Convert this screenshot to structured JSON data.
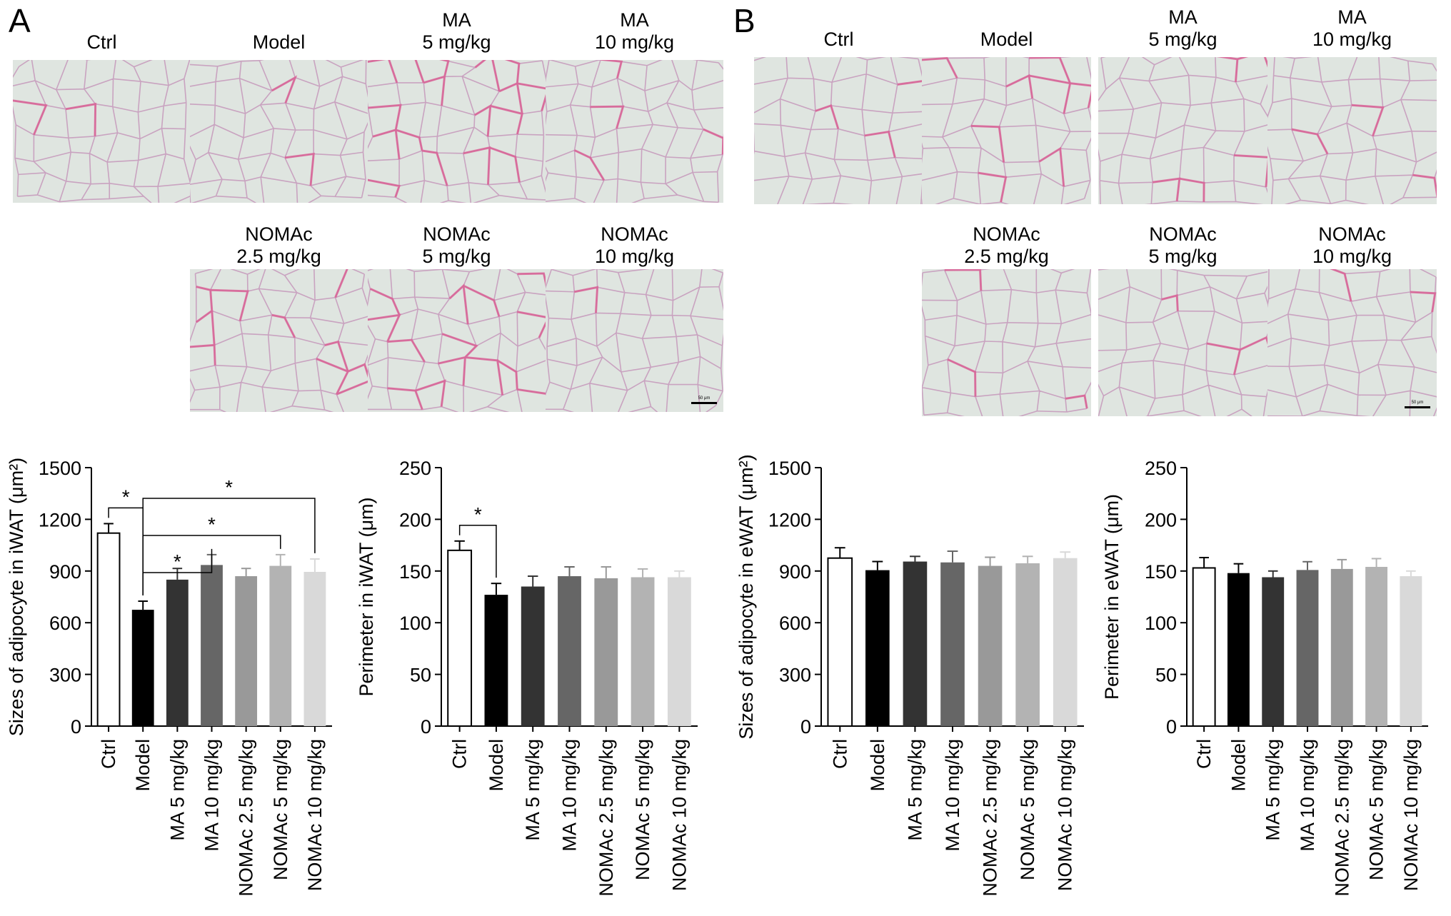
{
  "panels": [
    {
      "letter": "A",
      "micrograph_labels_row1": [
        [
          "Ctrl",
          ""
        ],
        [
          "Model",
          ""
        ],
        [
          "MA",
          "5 mg/kg"
        ],
        [
          "MA",
          "10 mg/kg"
        ]
      ],
      "micrograph_labels_row2": [
        [
          "NOMAc",
          "2.5 mg/kg"
        ],
        [
          "NOMAc",
          "5 mg/kg"
        ],
        [
          "NOMAc",
          "10 mg/kg"
        ]
      ],
      "scale_bar_text": "50 μm"
    },
    {
      "letter": "B",
      "micrograph_labels_row1": [
        [
          "Ctrl",
          ""
        ],
        [
          "Model",
          ""
        ],
        [
          "MA",
          "5 mg/kg"
        ],
        [
          "MA",
          "10 mg/kg"
        ]
      ],
      "micrograph_labels_row2": [
        [
          "NOMAc",
          "2.5 mg/kg"
        ],
        [
          "NOMAc",
          "5 mg/kg"
        ],
        [
          "NOMAc",
          "10 mg/kg"
        ]
      ],
      "scale_bar_text": "50 μm"
    }
  ],
  "chart_data": [
    {
      "type": "bar",
      "panel": "A",
      "ylabel": "Sizes of adipocyte in iWAT (μm²)",
      "ylim": [
        0,
        1500
      ],
      "yticks": [
        0,
        300,
        600,
        900,
        1200,
        1500
      ],
      "categories": [
        "Ctrl",
        "Model",
        "MA 5 mg/kg",
        "MA 10 mg/kg",
        "NOMAc 2.5 mg/kg",
        "NOMAc 5 mg/kg",
        "NOMAc 10 mg/kg"
      ],
      "values": [
        1120,
        675,
        850,
        935,
        870,
        930,
        895
      ],
      "errors": [
        55,
        50,
        65,
        60,
        45,
        65,
        75
      ],
      "bar_colors": [
        "#ffffff",
        "#000000",
        "#333333",
        "#666666",
        "#999999",
        "#b3b3b3",
        "#d9d9d9"
      ],
      "significance": [
        {
          "from": 0,
          "to": 1,
          "label": "*"
        },
        {
          "from": 1,
          "to": 3,
          "label": "*"
        },
        {
          "from": 1,
          "to": 5,
          "label": "*"
        },
        {
          "from": 1,
          "to": 6,
          "label": "*"
        }
      ]
    },
    {
      "type": "bar",
      "panel": "A",
      "ylabel": "Perimeter in iWAT (μm)",
      "ylim": [
        0,
        250
      ],
      "yticks": [
        0,
        50,
        100,
        150,
        200,
        250
      ],
      "categories": [
        "Ctrl",
        "Model",
        "MA 5 mg/kg",
        "MA 10 mg/kg",
        "NOMAc 2.5 mg/kg",
        "NOMAc 5 mg/kg",
        "NOMAc 10 mg/kg"
      ],
      "values": [
        170,
        127,
        135,
        145,
        143,
        144,
        144
      ],
      "errors": [
        9,
        11,
        10,
        9,
        11,
        8,
        6
      ],
      "bar_colors": [
        "#ffffff",
        "#000000",
        "#333333",
        "#666666",
        "#999999",
        "#b3b3b3",
        "#d9d9d9"
      ],
      "significance": [
        {
          "from": 0,
          "to": 1,
          "label": "*"
        }
      ]
    },
    {
      "type": "bar",
      "panel": "B",
      "ylabel": "Sizes of adipocyte in eWAT (μm²)",
      "ylim": [
        0,
        1500
      ],
      "yticks": [
        0,
        300,
        600,
        900,
        1200,
        1500
      ],
      "categories": [
        "Ctrl",
        "Model",
        "MA 5 mg/kg",
        "MA 10 mg/kg",
        "NOMAc 2.5 mg/kg",
        "NOMAc 5 mg/kg",
        "NOMAc 10 mg/kg"
      ],
      "values": [
        975,
        905,
        955,
        950,
        930,
        945,
        975
      ],
      "errors": [
        60,
        50,
        30,
        65,
        50,
        40,
        35
      ],
      "bar_colors": [
        "#ffffff",
        "#000000",
        "#333333",
        "#666666",
        "#999999",
        "#b3b3b3",
        "#d9d9d9"
      ],
      "significance": []
    },
    {
      "type": "bar",
      "panel": "B",
      "ylabel": "Perimeter in eWAT (μm)",
      "ylim": [
        0,
        250
      ],
      "yticks": [
        0,
        50,
        100,
        150,
        200,
        250
      ],
      "categories": [
        "Ctrl",
        "Model",
        "MA 5 mg/kg",
        "MA 10 mg/kg",
        "NOMAc 2.5 mg/kg",
        "NOMAc 5 mg/kg",
        "NOMAc 10 mg/kg"
      ],
      "values": [
        153,
        148,
        144,
        151,
        152,
        154,
        145
      ],
      "errors": [
        10,
        9,
        6,
        8,
        9,
        8,
        5
      ],
      "bar_colors": [
        "#ffffff",
        "#000000",
        "#333333",
        "#666666",
        "#999999",
        "#b3b3b3",
        "#d9d9d9"
      ],
      "significance": []
    }
  ]
}
